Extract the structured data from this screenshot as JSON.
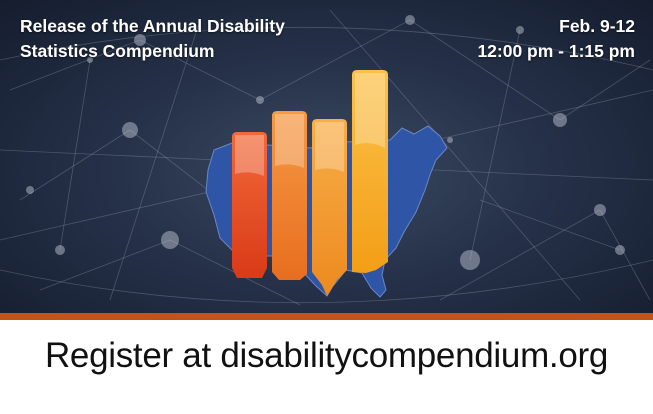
{
  "banner": {
    "title_line1": "Release of the Annual Disability",
    "title_line2": "Statistics Compendium",
    "date_line1": "Feb. 9-12",
    "date_line2": "12:00 pm - 1:15 pm"
  },
  "footer": {
    "register_text": "Register at disabilitycompendium.org"
  },
  "colors": {
    "map_blue": "#2f56a6",
    "stripe": "#c8501e",
    "bar1": "#e2431f",
    "bar2": "#f07a22",
    "bar3": "#f29020",
    "bar4": "#f6aa1c"
  },
  "icons": {
    "map": "usa-map-graphic",
    "bars": "bar-graph-graphic",
    "network": "network-background"
  }
}
